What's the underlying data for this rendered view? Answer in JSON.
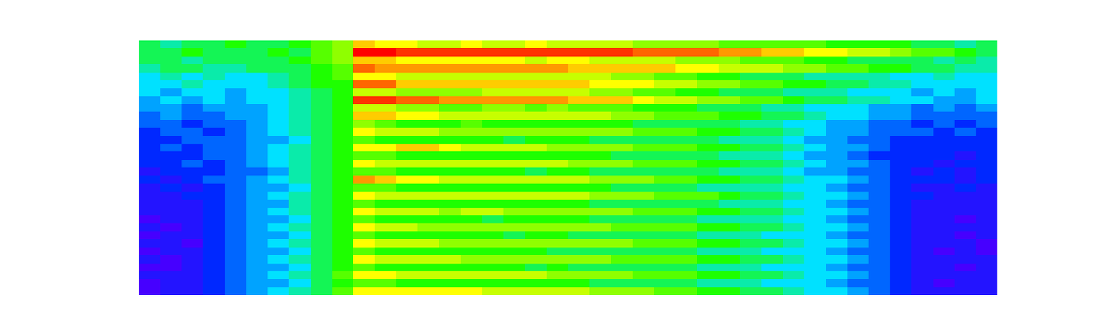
{
  "chart_data": {
    "type": "heatmap",
    "tick_labels": false,
    "zlim": [
      0,
      10
    ],
    "cells": [
      [
        5,
        4.5,
        5,
        5,
        5.5,
        5,
        5,
        5.5,
        6,
        6.5,
        8,
        7.5,
        7.5,
        7,
        7,
        7.5,
        7,
        7,
        7.5,
        7,
        7,
        7,
        7,
        6.5,
        6.5,
        6.5,
        6.5,
        6,
        6,
        6,
        6,
        6,
        5.5,
        5.5,
        5.5,
        5.5,
        5,
        5,
        4.5,
        5
      ],
      [
        5,
        5,
        5.5,
        5,
        5,
        5,
        5.5,
        5,
        6,
        6.5,
        10,
        10,
        9.5,
        9.5,
        9.5,
        9.5,
        9.5,
        9.5,
        9.5,
        9.5,
        9.5,
        9.5,
        9.5,
        9,
        9,
        9,
        9,
        8.5,
        8.5,
        8,
        8,
        7.5,
        7.5,
        7,
        7,
        6.5,
        6,
        6,
        5.5,
        5
      ],
      [
        5,
        5,
        4.5,
        5,
        5,
        5,
        5,
        5.5,
        6,
        6.5,
        8,
        8,
        7.5,
        7.5,
        7.5,
        7.5,
        7.5,
        7.5,
        7,
        7.5,
        7.5,
        7,
        7,
        7,
        7,
        6.5,
        6.5,
        6.5,
        6,
        6,
        6,
        5.5,
        5.5,
        5,
        5,
        5,
        5,
        4.5,
        5,
        4.5
      ],
      [
        4.5,
        5,
        5,
        4.5,
        4.5,
        5,
        5,
        5,
        5.5,
        6,
        9,
        8.5,
        8.5,
        8.5,
        8.5,
        8.5,
        8.5,
        8.5,
        8.5,
        8.5,
        8,
        8,
        8,
        8,
        8,
        7.5,
        7.5,
        7,
        7,
        7,
        6.5,
        6.5,
        6,
        6,
        5.5,
        5.5,
        5,
        5,
        4.5,
        4.5
      ],
      [
        4,
        4.5,
        4,
        4.5,
        4,
        4,
        4.5,
        5,
        5.5,
        6,
        7.5,
        7.5,
        7,
        7,
        7,
        7,
        7,
        7,
        7,
        7,
        7,
        7,
        6.5,
        6.5,
        6,
        6,
        5.5,
        5.5,
        5,
        5,
        5,
        4.5,
        4.5,
        4.5,
        4.5,
        4,
        4,
        4.5,
        4,
        4
      ],
      [
        4,
        4,
        4.5,
        4,
        4,
        4,
        4.5,
        5,
        5.5,
        5.5,
        9,
        9,
        8,
        8,
        8,
        8,
        8,
        8,
        8,
        8,
        8,
        7.5,
        7.5,
        7.5,
        7,
        7,
        6.5,
        6.5,
        6,
        6,
        5.5,
        5.5,
        5,
        5,
        4.5,
        4.5,
        4,
        4,
        4,
        4
      ],
      [
        4,
        3.5,
        4,
        4,
        3.5,
        4,
        4,
        4.5,
        5,
        5.5,
        7,
        7,
        6.5,
        6.5,
        6.5,
        6.5,
        7,
        7,
        7,
        7,
        7,
        6.5,
        6.5,
        6,
        6,
        5.5,
        5.5,
        5,
        5,
        5,
        4.5,
        4.5,
        4.5,
        4,
        4,
        4,
        3.5,
        4,
        3.5,
        4
      ],
      [
        3.5,
        4,
        3.5,
        4,
        3.5,
        4,
        4,
        4.5,
        5,
        5.5,
        9.5,
        9.5,
        9,
        9,
        8.5,
        8.5,
        8.5,
        8.5,
        8.5,
        8.5,
        8,
        8,
        8,
        7.5,
        7,
        7,
        6.5,
        6.5,
        6,
        6,
        5.5,
        5,
        5,
        4.5,
        4.5,
        4,
        4,
        3.5,
        3.5,
        4
      ],
      [
        3.5,
        3.5,
        3,
        3.5,
        3.5,
        3.5,
        4,
        4.5,
        5,
        5.5,
        7,
        7,
        6.5,
        6.5,
        6,
        6,
        6.5,
        6.5,
        6,
        6.5,
        6,
        6,
        6,
        5.5,
        5.5,
        5.5,
        5,
        5,
        5,
        4.5,
        4.5,
        4,
        4,
        4,
        3.5,
        3.5,
        3,
        3.5,
        3,
        3.5
      ],
      [
        3,
        3.5,
        3,
        3,
        3.5,
        3.5,
        4,
        4.5,
        5,
        5.5,
        8,
        8,
        7.5,
        7.5,
        7,
        7,
        7,
        7,
        7,
        7,
        7,
        7,
        6.5,
        6.5,
        6,
        6,
        6,
        5.5,
        5.5,
        5,
        5,
        4.5,
        4,
        4,
        3.5,
        3.5,
        3,
        3,
        3,
        3
      ],
      [
        3,
        3,
        2.5,
        3,
        3,
        3.5,
        4,
        4.5,
        5,
        5.5,
        6.5,
        6,
        5.5,
        5.5,
        5.5,
        6,
        5.5,
        5.5,
        5.5,
        5.5,
        5.5,
        5.5,
        5.5,
        5,
        5,
        5,
        5,
        5,
        4.5,
        4.5,
        4,
        4,
        3.5,
        3.5,
        3,
        3,
        2.5,
        3,
        2.5,
        3
      ],
      [
        2.5,
        3,
        3,
        2.5,
        3,
        3.5,
        4,
        4.5,
        5,
        5.5,
        7.5,
        7,
        7,
        7,
        6.5,
        6.5,
        6.5,
        6.5,
        6.5,
        6.5,
        6.5,
        6.5,
        6.5,
        6,
        6,
        6,
        5.5,
        5.5,
        5,
        5,
        4.5,
        4,
        3.5,
        3.5,
        3,
        3,
        3,
        2.5,
        3,
        2.5
      ],
      [
        2.5,
        2.5,
        3,
        3,
        3,
        3.5,
        3.5,
        4,
        5,
        5.5,
        6,
        5.5,
        5.5,
        5.5,
        5.5,
        5.5,
        5.5,
        5,
        5.5,
        5.5,
        5.5,
        5,
        5,
        5,
        5,
        5,
        5,
        4.5,
        4.5,
        4.5,
        4,
        3.5,
        3.5,
        3,
        3,
        2.5,
        2.5,
        2.5,
        2.5,
        2.5
      ],
      [
        2.5,
        3,
        2.5,
        3,
        3,
        3.5,
        4,
        4.5,
        5,
        5.5,
        7.5,
        7.5,
        8,
        8,
        7.5,
        7,
        7,
        7,
        7,
        6.5,
        6.5,
        6.5,
        6.5,
        6,
        6,
        6,
        5.5,
        5.5,
        5,
        5,
        4.5,
        4,
        3.5,
        3.5,
        3,
        2.5,
        2.5,
        2.5,
        2.5,
        2.5
      ],
      [
        2.5,
        2.5,
        2.5,
        3,
        3,
        3.5,
        4,
        4.5,
        5,
        5.5,
        6,
        6,
        5.5,
        5.5,
        5.5,
        5.5,
        5.5,
        5.5,
        5.5,
        5.5,
        5.5,
        5.5,
        5,
        5,
        5,
        5,
        5,
        4.5,
        4.5,
        4.5,
        4,
        3.5,
        3.5,
        3,
        2.5,
        2.5,
        2.5,
        2.5,
        2,
        2.5
      ],
      [
        2.5,
        2.5,
        3,
        2.5,
        3,
        3.5,
        4,
        4.5,
        5,
        5.5,
        7.5,
        7,
        7,
        7,
        7,
        7,
        7,
        7,
        7,
        7,
        6.5,
        6.5,
        6.5,
        6,
        6,
        6,
        5.5,
        5.5,
        5,
        5,
        4.5,
        4,
        3.5,
        3.5,
        3,
        2.5,
        2.5,
        2,
        2.5,
        2.5
      ],
      [
        2,
        2.5,
        2.5,
        2.5,
        3,
        3,
        3.5,
        4.5,
        5,
        5.5,
        6,
        6,
        5.5,
        5.5,
        5.5,
        5.5,
        5.5,
        5.5,
        5,
        5.5,
        5.5,
        5,
        5,
        5,
        5,
        5,
        5,
        4.5,
        4.5,
        4.5,
        4,
        3.5,
        3.5,
        3,
        3,
        2.5,
        2,
        2.5,
        2,
        2.5
      ],
      [
        2.5,
        2,
        2.5,
        3,
        3,
        3.5,
        4,
        4.5,
        5,
        5.5,
        8.5,
        8,
        7.5,
        7.5,
        7,
        7,
        7,
        7,
        7,
        7,
        7,
        6.5,
        6.5,
        6.5,
        6,
        6,
        5.5,
        5.5,
        5,
        5,
        4.5,
        4,
        4,
        3.5,
        3,
        2.5,
        2.5,
        2.5,
        2,
        2.5
      ],
      [
        2,
        2.5,
        2,
        2.5,
        3,
        3.5,
        3.5,
        4,
        5,
        5.5,
        6,
        6,
        5.5,
        5.5,
        5.5,
        5.5,
        5.5,
        5.5,
        5.5,
        5.5,
        5.5,
        5.5,
        5,
        5,
        5,
        5,
        4.5,
        4.5,
        4.5,
        4.5,
        4,
        4,
        3.5,
        3,
        3,
        2.5,
        2,
        2,
        2.5,
        2
      ],
      [
        2,
        2,
        2.5,
        2.5,
        3,
        3.5,
        4,
        4.5,
        5,
        5.5,
        7.5,
        7,
        7,
        7,
        7,
        7,
        7,
        7,
        7,
        7,
        7,
        6.5,
        6.5,
        6.5,
        6,
        6,
        6,
        5.5,
        5,
        5,
        4.5,
        4,
        4,
        3.5,
        3,
        2.5,
        2.5,
        2,
        2,
        2
      ],
      [
        2,
        2,
        2,
        2.5,
        3,
        3.5,
        3.5,
        4.5,
        5,
        5.5,
        6,
        5.5,
        5.5,
        5.5,
        5.5,
        5.5,
        5.5,
        5.5,
        5.5,
        5.5,
        5.5,
        5,
        5,
        5,
        5,
        5,
        5,
        4.5,
        4.5,
        4.5,
        4,
        4,
        3.5,
        3,
        3,
        2.5,
        2,
        2,
        2,
        2
      ],
      [
        2,
        2,
        2,
        2.5,
        3,
        3.5,
        4,
        4.5,
        5,
        5.5,
        7.5,
        7,
        7,
        7,
        6.5,
        7,
        7,
        6.5,
        6.5,
        6.5,
        6.5,
        6.5,
        6.5,
        6,
        6,
        6,
        5.5,
        5.5,
        5,
        5,
        4.5,
        4,
        4,
        3.5,
        3,
        2.5,
        2,
        2,
        2,
        2
      ],
      [
        1.5,
        2,
        2,
        2.5,
        3,
        3.5,
        3.5,
        4,
        5,
        5.5,
        6,
        5.5,
        5.5,
        5.5,
        5.5,
        5.5,
        5,
        5.5,
        5.5,
        5.5,
        5.5,
        5,
        5,
        5,
        5,
        5,
        4.5,
        4.5,
        4.5,
        4.5,
        4,
        4,
        3.5,
        3,
        3,
        2.5,
        2,
        2,
        1.5,
        2
      ],
      [
        2,
        1.5,
        2,
        2.5,
        3,
        3.5,
        4,
        4.5,
        5,
        5.5,
        7.5,
        7,
        7,
        6.5,
        6.5,
        6.5,
        6.5,
        6.5,
        6.5,
        6.5,
        6.5,
        6.5,
        6,
        6,
        6,
        6,
        5.5,
        5.5,
        5,
        5,
        4.5,
        4,
        4,
        3.5,
        3,
        2.5,
        2,
        2,
        2,
        2
      ],
      [
        1.5,
        2,
        2,
        2.5,
        3,
        3.5,
        3.5,
        4,
        5,
        5.5,
        6,
        5.5,
        5.5,
        5.5,
        5.5,
        5.5,
        5.5,
        5,
        5.5,
        5.5,
        5,
        5,
        5,
        5,
        5,
        5,
        4.5,
        4.5,
        4.5,
        4,
        4,
        4,
        3.5,
        3,
        3,
        2.5,
        2,
        2,
        1.5,
        2
      ],
      [
        2,
        2,
        1.5,
        2.5,
        3,
        3.5,
        4,
        4.5,
        5,
        5.5,
        7.5,
        7,
        7,
        7,
        6.5,
        6.5,
        6.5,
        6.5,
        6.5,
        6.5,
        6.5,
        6.5,
        6.5,
        6,
        6,
        6,
        5.5,
        5.5,
        5,
        5,
        4.5,
        4,
        4,
        3.5,
        3,
        2.5,
        2,
        2,
        2,
        1.5
      ],
      [
        1.5,
        2,
        2,
        2.5,
        3,
        3.5,
        3.5,
        4,
        5,
        5.5,
        6,
        5.5,
        5.5,
        5.5,
        5.5,
        5.5,
        5.5,
        5.5,
        5.5,
        5,
        5,
        5,
        5,
        5,
        5,
        5,
        4.5,
        4.5,
        4.5,
        4,
        4,
        4,
        3.5,
        3,
        3,
        2.5,
        2,
        1.5,
        2,
        1.5
      ],
      [
        2,
        1.5,
        2,
        2.5,
        3,
        3.5,
        4,
        4.5,
        5,
        5.5,
        7.5,
        7,
        7,
        7,
        7,
        6.5,
        6.5,
        6.5,
        6.5,
        6.5,
        6.5,
        6.5,
        6,
        6,
        6,
        6,
        5.5,
        5.5,
        5,
        5,
        4.5,
        4,
        4,
        3.5,
        3,
        2.5,
        2,
        2,
        2,
        2
      ],
      [
        1.5,
        1.5,
        2,
        2.5,
        3,
        3.5,
        3.5,
        4,
        5,
        5.5,
        6,
        5.5,
        5.5,
        5.5,
        5.5,
        5.5,
        5.5,
        5.5,
        5,
        5.5,
        5,
        5,
        5,
        5,
        5,
        5,
        4.5,
        4.5,
        4.5,
        4,
        4,
        4,
        3.5,
        3,
        3,
        2.5,
        2,
        2,
        1.5,
        2
      ],
      [
        2,
        2,
        2,
        2.5,
        3,
        3.5,
        4,
        4.5,
        5,
        6,
        7.5,
        7.5,
        7,
        7,
        7,
        7,
        7,
        7,
        7,
        6.5,
        6.5,
        6.5,
        6.5,
        6,
        6,
        6,
        5.5,
        5.5,
        5,
        5,
        4.5,
        4,
        4,
        3.5,
        3,
        2.5,
        2,
        2,
        2,
        2
      ],
      [
        1.5,
        2,
        2,
        2.5,
        3,
        3.5,
        3.5,
        4,
        5,
        5.5,
        6,
        6,
        5.5,
        5.5,
        5.5,
        5.5,
        5.5,
        5.5,
        5.5,
        5.5,
        5.5,
        5,
        5,
        5,
        5,
        5,
        4.5,
        4.5,
        4.5,
        4,
        4,
        4,
        3.5,
        3,
        3,
        2.5,
        2,
        1.5,
        2,
        2
      ],
      [
        1.5,
        2,
        2,
        2.5,
        3,
        3.5,
        4,
        4.5,
        5,
        6,
        7.5,
        7.5,
        7.5,
        7.5,
        7.5,
        7.5,
        7,
        7,
        7,
        7,
        7,
        6.5,
        6.5,
        6.5,
        6,
        6,
        5.5,
        5.5,
        5,
        5,
        4.5,
        4,
        4,
        3.5,
        3,
        2.5,
        2,
        2,
        2,
        2
      ]
    ]
  }
}
